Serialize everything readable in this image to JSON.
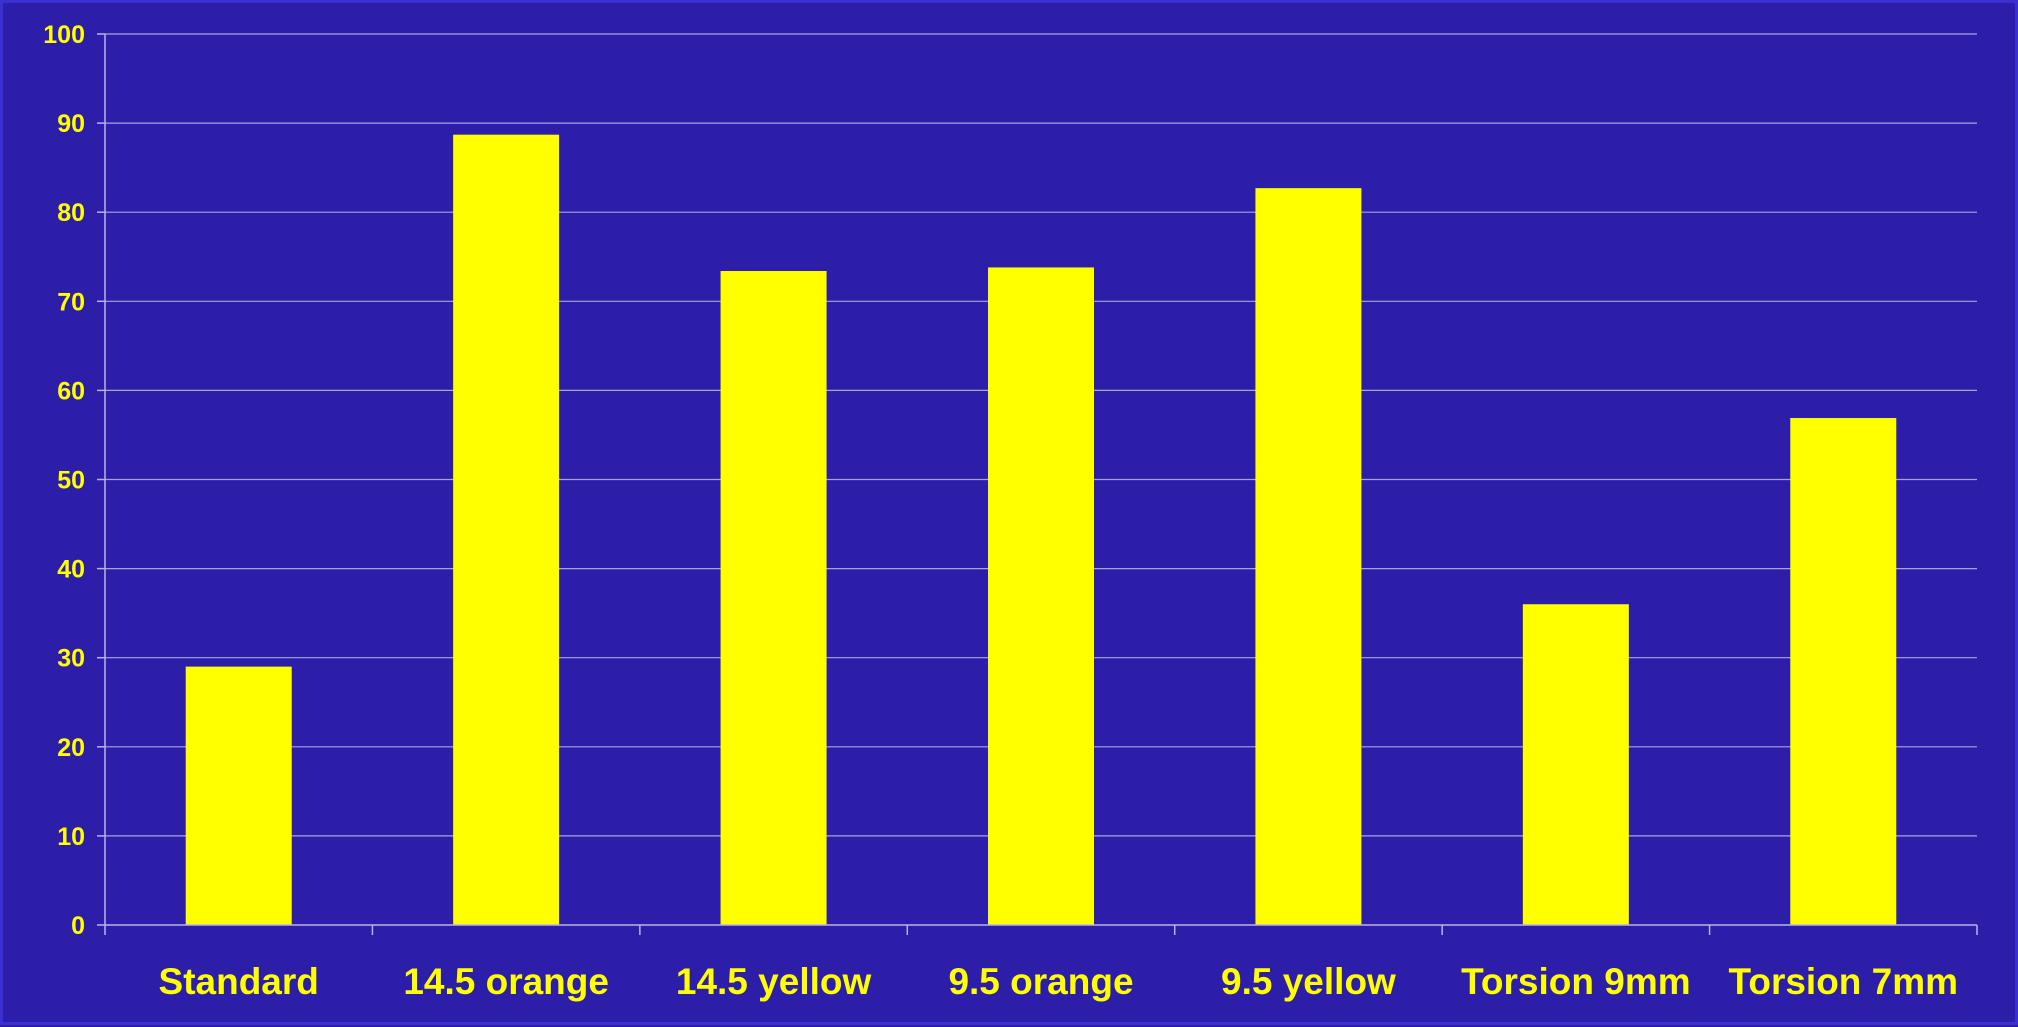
{
  "chart_data": {
    "type": "bar",
    "categories": [
      "Standard",
      "14.5 orange",
      "14.5 yellow",
      "9.5 orange",
      "9.5 yellow",
      "Torsion 9mm",
      "Torsion 7mm"
    ],
    "values": [
      29,
      88.7,
      73.4,
      73.8,
      82.7,
      36,
      56.9
    ],
    "title": "",
    "xlabel": "",
    "ylabel": "",
    "ylim": [
      0,
      100
    ],
    "yticks": [
      "0",
      "10",
      "20",
      "30",
      "40",
      "50",
      "60",
      "70",
      "80",
      "90",
      "100"
    ],
    "grid": true,
    "legend": "none",
    "colors": {
      "background": "#2c1ea8",
      "bar": "#ffff00",
      "text": "#ffff00",
      "grid": "#a8a4e0",
      "axis": "#b8b4e8"
    }
  }
}
